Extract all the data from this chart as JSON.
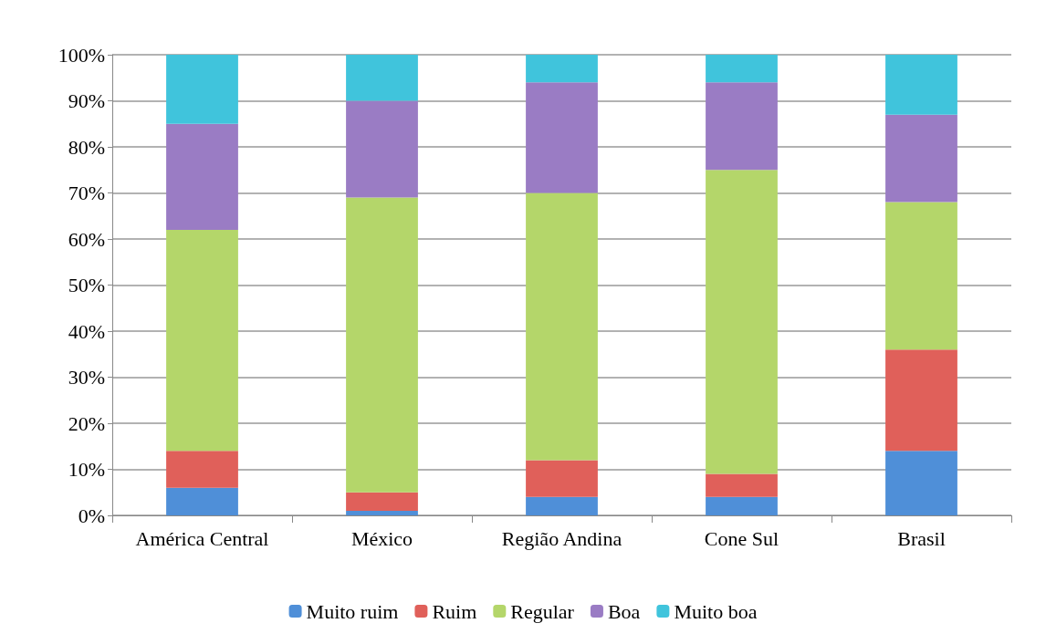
{
  "chart_data": {
    "type": "bar",
    "stacked": true,
    "categories": [
      "América Central",
      "México",
      "Região Andina",
      "Cone Sul",
      "Brasil"
    ],
    "series": [
      {
        "name": "Muito ruim",
        "color": "#4f8fd8",
        "values": [
          6,
          1,
          4,
          4,
          14
        ]
      },
      {
        "name": "Ruim",
        "color": "#e0605a",
        "values": [
          8,
          4,
          8,
          5,
          22
        ]
      },
      {
        "name": "Regular",
        "color": "#b4d66a",
        "values": [
          48,
          64,
          58,
          66,
          32
        ]
      },
      {
        "name": "Boa",
        "color": "#9a7cc4",
        "values": [
          23,
          21,
          24,
          19,
          19
        ]
      },
      {
        "name": "Muito boa",
        "color": "#40c4dc",
        "values": [
          15,
          10,
          6,
          6,
          13
        ]
      }
    ],
    "ylim": [
      0,
      100
    ],
    "yticks": [
      {
        "value": 0,
        "label": "0%"
      },
      {
        "value": 10,
        "label": "10%"
      },
      {
        "value": 20,
        "label": "20%"
      },
      {
        "value": 30,
        "label": "30%"
      },
      {
        "value": 40,
        "label": "40%"
      },
      {
        "value": 50,
        "label": "50%"
      },
      {
        "value": 60,
        "label": "60%"
      },
      {
        "value": 70,
        "label": "70%"
      },
      {
        "value": 80,
        "label": "80%"
      },
      {
        "value": 90,
        "label": "90%"
      },
      {
        "value": 100,
        "label": "100%"
      }
    ],
    "grid": "y",
    "legend": "bottom"
  }
}
